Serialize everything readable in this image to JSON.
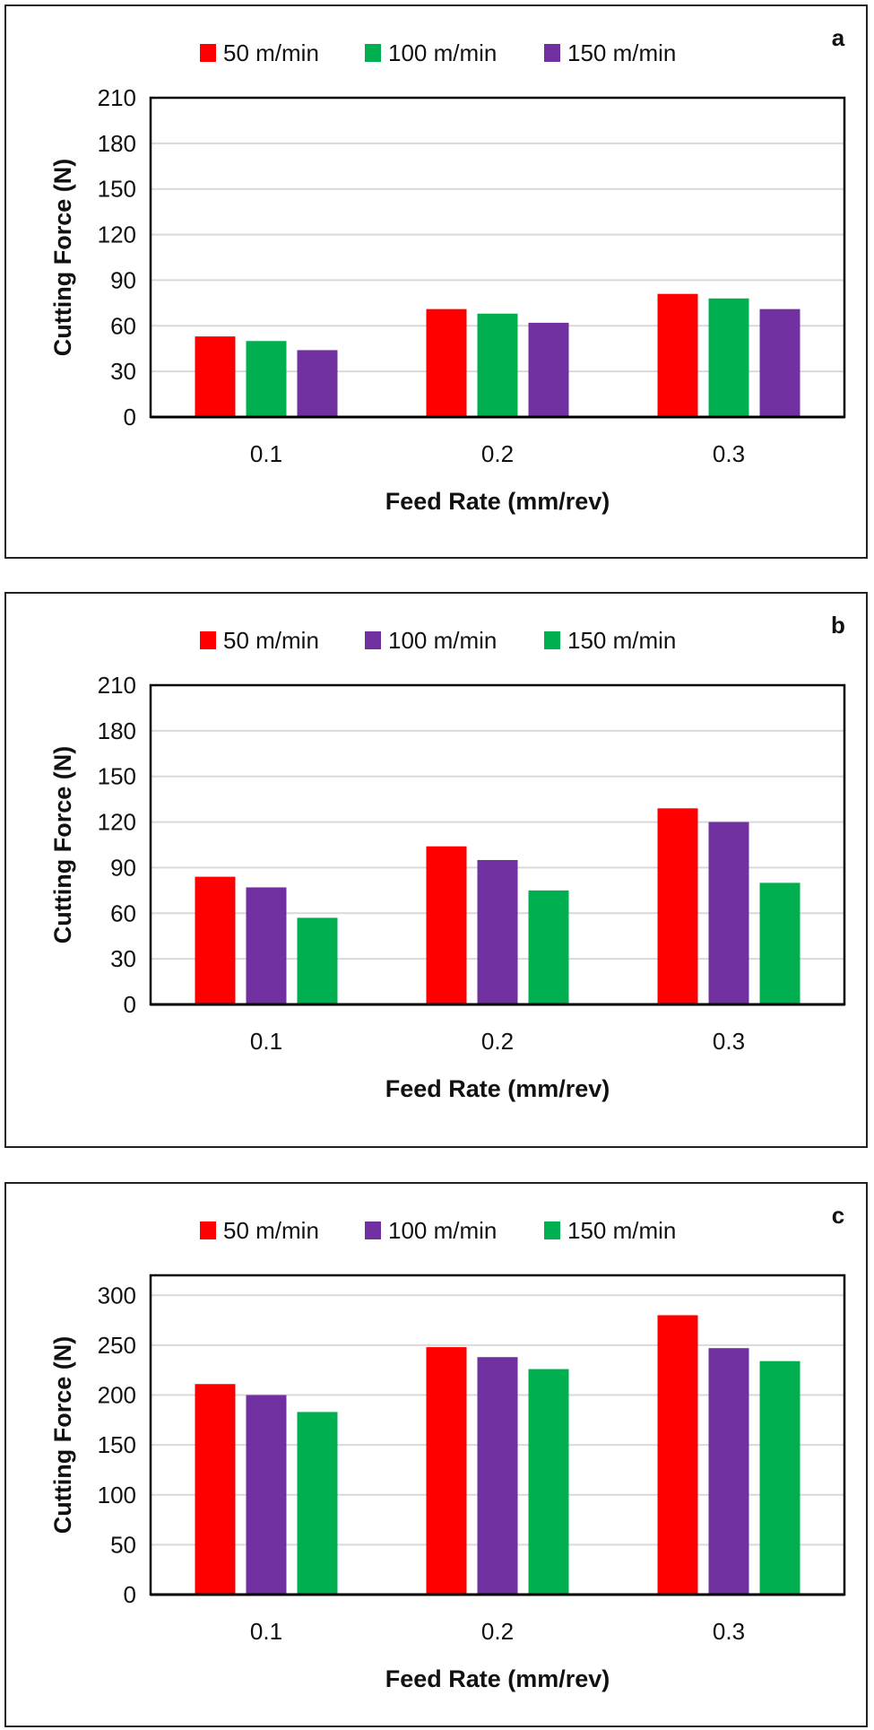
{
  "chart_data": [
    {
      "type": "bar",
      "panel_label": "a",
      "categories": [
        "0.1",
        "0.2",
        "0.3"
      ],
      "series": [
        {
          "name": "50 m/min",
          "color": "#ff0000",
          "values": [
            53,
            71,
            81
          ]
        },
        {
          "name": "100 m/min",
          "color": "#00b050",
          "values": [
            50,
            68,
            78
          ]
        },
        {
          "name": "150 m/min",
          "color": "#7030a0",
          "values": [
            44,
            62,
            71
          ]
        }
      ],
      "xlabel": "Feed Rate (mm/rev)",
      "ylabel": "Cutting Force (N)",
      "ylim": [
        0,
        210
      ],
      "yticks": [
        0,
        30,
        60,
        90,
        120,
        150,
        180,
        210
      ],
      "grid": true,
      "legend": "top"
    },
    {
      "type": "bar",
      "panel_label": "b",
      "categories": [
        "0.1",
        "0.2",
        "0.3"
      ],
      "series": [
        {
          "name": "50 m/min",
          "color": "#ff0000",
          "values": [
            84,
            104,
            129
          ]
        },
        {
          "name": "100 m/min",
          "color": "#7030a0",
          "values": [
            77,
            95,
            120
          ]
        },
        {
          "name": "150 m/min",
          "color": "#00b050",
          "values": [
            57,
            75,
            80
          ]
        }
      ],
      "xlabel": "Feed Rate (mm/rev)",
      "ylabel": "Cutting Force (N)",
      "ylim": [
        0,
        210
      ],
      "yticks": [
        0,
        30,
        60,
        90,
        120,
        150,
        180,
        210
      ],
      "grid": true,
      "legend": "top"
    },
    {
      "type": "bar",
      "panel_label": "c",
      "categories": [
        "0.1",
        "0.2",
        "0.3"
      ],
      "series": [
        {
          "name": "50 m/min",
          "color": "#ff0000",
          "values": [
            211,
            248,
            280
          ]
        },
        {
          "name": "100 m/min",
          "color": "#7030a0",
          "values": [
            200,
            238,
            247
          ]
        },
        {
          "name": "150 m/min",
          "color": "#00b050",
          "values": [
            183,
            226,
            234
          ]
        }
      ],
      "xlabel": "Feed Rate (mm/rev)",
      "ylabel": "Cutting Force (N)",
      "ylim": [
        0,
        320
      ],
      "yticks": [
        0,
        50,
        100,
        150,
        200,
        250,
        300
      ],
      "grid": true,
      "legend": "top"
    }
  ]
}
